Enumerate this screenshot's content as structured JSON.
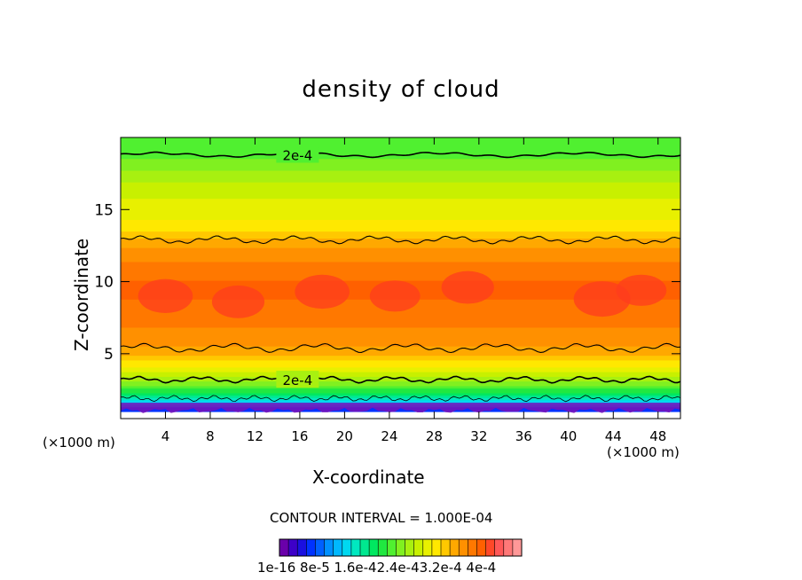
{
  "chart_data": {
    "type": "heatmap",
    "title": "density of cloud",
    "xlabel": "X-coordinate",
    "ylabel": "Z-coordinate",
    "x_unit_left": "(×1000 m)",
    "x_unit_right": "(×1000 m)",
    "xlim": [
      0,
      50
    ],
    "ylim": [
      0.5,
      20
    ],
    "x_ticks": [
      "4",
      "8",
      "12",
      "16",
      "20",
      "24",
      "28",
      "32",
      "36",
      "40",
      "44",
      "48"
    ],
    "x_tick_values": [
      4,
      8,
      12,
      16,
      20,
      24,
      28,
      32,
      36,
      40,
      44,
      48
    ],
    "y_ticks": [
      "5",
      "10",
      "15"
    ],
    "y_tick_values": [
      5,
      10,
      15
    ],
    "field_profile": {
      "z": [
        1.2,
        1.6,
        2.0,
        2.5,
        3.0,
        3.5,
        4.0,
        4.5,
        5.0,
        5.5,
        6.0,
        7.0,
        8.0,
        9.0,
        10.0,
        11.0,
        12.0,
        12.8,
        13.5,
        14.5,
        15.5,
        16.5,
        17.5,
        18.5,
        19.5
      ],
      "density": [
        5e-05,
        0.0001,
        0.00014,
        0.00018,
        0.00021,
        0.00024,
        0.00026,
        0.00028,
        0.0003,
        0.00031,
        0.00032,
        0.00033,
        0.00034,
        0.000345,
        0.000345,
        0.000335,
        0.00032,
        0.0003,
        0.00028,
        0.00026,
        0.00025,
        0.00024,
        0.00022,
        0.0002,
        0.00019
      ]
    },
    "contour_labels": [
      {
        "text": "2e-4",
        "x": 15.8,
        "z": 18.8
      },
      {
        "text": "2e-4",
        "x": 15.8,
        "z": 3.2
      }
    ],
    "contour_interval_text": "CONTOUR INTERVAL = 1.000E-04",
    "colorbar_labels": "1e-16 8e-5 1.6e-42.4e-43.2e-4 4e-4",
    "colorbar_colors": [
      "#6a00aa",
      "#3d00c8",
      "#1a10e0",
      "#0032ff",
      "#0060ff",
      "#0090ff",
      "#00b8ff",
      "#00d8f0",
      "#00e8c0",
      "#00e890",
      "#00e860",
      "#20e840",
      "#50f030",
      "#80f020",
      "#a8f010",
      "#c8f000",
      "#e8f000",
      "#ffe800",
      "#ffc800",
      "#ffa800",
      "#ff9000",
      "#ff7800",
      "#ff6000",
      "#ff4828",
      "#ff5858",
      "#ff7878",
      "#ff9898"
    ]
  }
}
